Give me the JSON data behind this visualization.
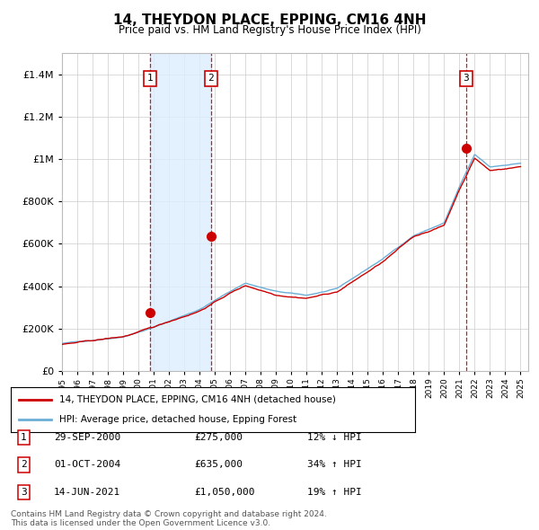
{
  "title": "14, THEYDON PLACE, EPPING, CM16 4NH",
  "subtitle": "Price paid vs. HM Land Registry's House Price Index (HPI)",
  "ylim": [
    0,
    1500000
  ],
  "yticks": [
    0,
    200000,
    400000,
    600000,
    800000,
    1000000,
    1200000,
    1400000
  ],
  "xmin": 1995.0,
  "xmax": 2025.5,
  "sale_dates": [
    2000.75,
    2004.75,
    2021.45
  ],
  "sale_prices": [
    275000,
    635000,
    1050000
  ],
  "sale_labels": [
    "1",
    "2",
    "3"
  ],
  "sale_pct": [
    "12% ↓ HPI",
    "34% ↑ HPI",
    "19% ↑ HPI"
  ],
  "sale_date_strs": [
    "29-SEP-2000",
    "01-OCT-2004",
    "14-JUN-2021"
  ],
  "sale_price_strs": [
    "£275,000",
    "£635,000",
    "£1,050,000"
  ],
  "hpi_color": "#6baed6",
  "price_color": "#cc0000",
  "shade_color": "#ddeeff",
  "legend_line1": "14, THEYDON PLACE, EPPING, CM16 4NH (detached house)",
  "legend_line2": "HPI: Average price, detached house, Epping Forest",
  "footer1": "Contains HM Land Registry data © Crown copyright and database right 2024.",
  "footer2": "This data is licensed under the Open Government Licence v3.0.",
  "background_color": "#ffffff",
  "grid_color": "#cccccc"
}
